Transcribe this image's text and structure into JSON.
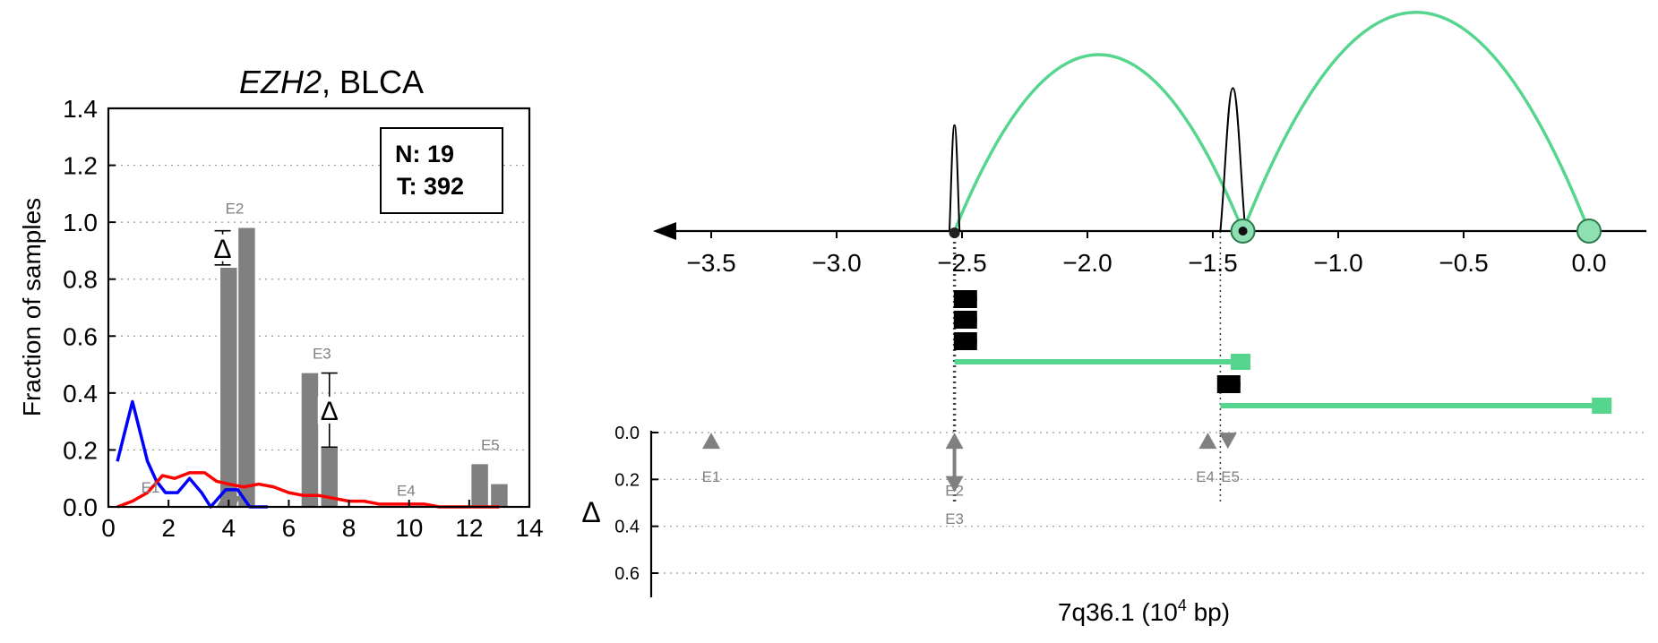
{
  "chart_data": [
    {
      "type": "bar",
      "title_gene": "EZH2",
      "title_rest": ", BLCA",
      "ylabel": "Fraction of samples",
      "xlim": [
        0,
        14
      ],
      "ylim": [
        0,
        1.4
      ],
      "xticks": [
        "0",
        "2",
        "4",
        "6",
        "8",
        "10",
        "12",
        "14"
      ],
      "yticks": [
        "0.0",
        "0.2",
        "0.4",
        "0.6",
        "0.8",
        "1.0",
        "1.2",
        "1.4"
      ],
      "grid": "y-dotted",
      "legend_box": {
        "n_label": "N: 19",
        "t_label": "T: 392"
      },
      "delta_symbol": "Δ",
      "bars": [
        {
          "x": 4.0,
          "value": 0.84,
          "group": "E2"
        },
        {
          "x": 4.6,
          "value": 0.98,
          "group": "E2"
        },
        {
          "x": 6.7,
          "value": 0.47,
          "group": "E3"
        },
        {
          "x": 7.35,
          "value": 0.21,
          "group": "E3"
        },
        {
          "x": 12.35,
          "value": 0.15,
          "group": "E5"
        },
        {
          "x": 13.0,
          "value": 0.08,
          "group": "E5"
        }
      ],
      "exon_labels": [
        {
          "label": "E1",
          "x": 1.4,
          "y": 0.05
        },
        {
          "label": "E2",
          "x": 4.2,
          "y": 1.03
        },
        {
          "label": "E3",
          "x": 7.1,
          "y": 0.52
        },
        {
          "label": "E4",
          "x": 9.9,
          "y": 0.04
        },
        {
          "label": "E5",
          "x": 12.7,
          "y": 0.2
        }
      ],
      "delta_brackets": [
        {
          "x": 3.8,
          "y_low": 0.85,
          "y_high": 0.97
        },
        {
          "x": 7.35,
          "y_low": 0.21,
          "y_high": 0.47
        }
      ],
      "series": [
        {
          "color": "#0000ff",
          "x": [
            0.3,
            0.8,
            1.3,
            1.6,
            1.9,
            2.3,
            2.7,
            3.1,
            3.4,
            3.9,
            4.3,
            4.7,
            5.3
          ],
          "y": [
            0.16,
            0.37,
            0.16,
            0.09,
            0.05,
            0.05,
            0.1,
            0.05,
            0.0,
            0.06,
            0.06,
            0.0,
            0.0
          ]
        },
        {
          "color": "#ff0000",
          "x": [
            0.3,
            0.8,
            1.3,
            1.8,
            2.2,
            2.7,
            3.2,
            3.6,
            4.0,
            4.5,
            5.0,
            5.5,
            6.0,
            6.5,
            7.0,
            7.5,
            8.0,
            8.5,
            9.0,
            9.5,
            10.0,
            10.5,
            11.0,
            11.5,
            12.0,
            12.5,
            13.0
          ],
          "y": [
            0.0,
            0.02,
            0.05,
            0.11,
            0.1,
            0.12,
            0.12,
            0.09,
            0.08,
            0.07,
            0.08,
            0.07,
            0.05,
            0.04,
            0.04,
            0.03,
            0.02,
            0.02,
            0.01,
            0.01,
            0.01,
            0.01,
            0.0,
            0.0,
            0.0,
            0.0,
            0.0
          ]
        }
      ]
    },
    {
      "type": "scatter",
      "xlabel": "7q36.1 (10",
      "xlabel_sup": "4",
      "xlabel_end": " bp)",
      "xlim": [
        -3.72,
        0.2
      ],
      "xticks": [
        "−3.5",
        "−3.0",
        "−2.5",
        "−2.0",
        "−1.5",
        "−1.0",
        "−0.5",
        "0.0"
      ],
      "xtick_values": [
        -3.5,
        -3.0,
        -2.5,
        -2.0,
        -1.5,
        -1.0,
        -0.5,
        0.0
      ],
      "delta_ylabel": "Δ",
      "delta_ylim": [
        0,
        0.7
      ],
      "delta_yticks": [
        "0.0",
        "0.2",
        "0.4",
        "0.6"
      ],
      "colors": {
        "arc": "#55d58e",
        "exon": "#000000",
        "marker": "#808080"
      },
      "arcs": [
        {
          "from": -2.53,
          "to": -1.38,
          "height": 1.0
        },
        {
          "from": -1.38,
          "to": 0.0,
          "height": 1.24
        }
      ],
      "peaks": [
        {
          "center": -2.53,
          "width": 0.04,
          "height": 0.6
        },
        {
          "center": -1.42,
          "width": 0.1,
          "height": 0.81
        }
      ],
      "junction_dots": [
        {
          "x": -2.53,
          "style": "small"
        },
        {
          "x": -1.38,
          "style": "large"
        },
        {
          "x": 0.0,
          "style": "large-plain"
        }
      ],
      "transcripts": [
        {
          "start": -2.53,
          "end": -2.44,
          "row": 0,
          "color": "#000000"
        },
        {
          "start": -2.53,
          "end": -2.44,
          "row": 1,
          "color": "#000000"
        },
        {
          "start": -2.53,
          "end": -2.44,
          "row": 2,
          "color": "#000000"
        },
        {
          "start": -2.53,
          "end": -1.35,
          "row": 3,
          "color": "#55d58e"
        },
        {
          "start": -1.47,
          "end": -1.39,
          "row": 4,
          "color": "#000000"
        },
        {
          "start": -1.47,
          "end": 0.09,
          "row": 5,
          "color": "#55d58e"
        }
      ],
      "exon_markers": [
        {
          "label": "E1",
          "x": -3.5,
          "delta": 0.0
        },
        {
          "label": "E2",
          "x": -2.53,
          "delta": 0.22
        },
        {
          "label": "E3",
          "x": -2.53,
          "delta": 0.0
        },
        {
          "label": "E4",
          "x": -1.52,
          "delta": 0.0
        },
        {
          "label": "E5",
          "x": -1.44,
          "delta": 0.0
        }
      ]
    }
  ]
}
